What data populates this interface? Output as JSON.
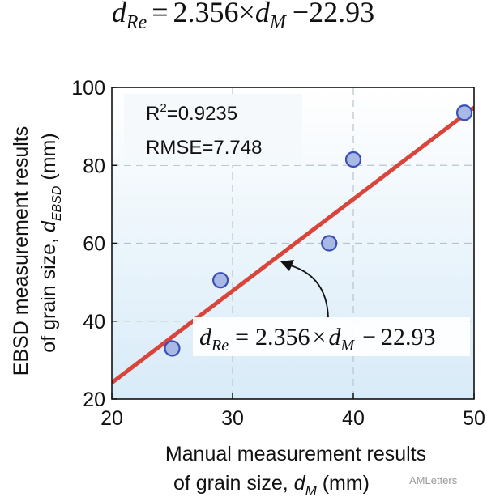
{
  "equation_header": {
    "lhs_var": "d",
    "lhs_sub": "Re",
    "equals": "=",
    "coef": "2.356",
    "times": "×",
    "rhs_var": "d",
    "rhs_sub": "M",
    "minus": "−",
    "intercept": "22.93"
  },
  "stats": {
    "r2_prefix": "R",
    "r2_sup": "2",
    "r2_value": "=0.9235",
    "rmse": "RMSE=7.748"
  },
  "colors": {
    "fit_line": "#d9453b",
    "marker_fill": "#a9b9e6",
    "marker_edge": "#3b4fb8",
    "bg_top": "#ffffff",
    "bg_bottom": "#d8ebf8"
  },
  "watermark": "AMLetters",
  "chart_data": {
    "type": "scatter",
    "xlabel_line1": "Manual measurement results",
    "xlabel_line2_prefix": "of grain size, ",
    "xlabel_var": "d",
    "xlabel_sub": "M",
    "xlabel_unit": " (mm)",
    "ylabel_line1": "EBSD measurement results",
    "ylabel_line2_prefix": "of grain size, ",
    "ylabel_var": "d",
    "ylabel_sub": "EBSD",
    "ylabel_unit": " (mm)",
    "xlim": [
      20,
      50
    ],
    "ylim": [
      20,
      100
    ],
    "xticks": [
      20,
      30,
      40,
      50
    ],
    "yticks": [
      20,
      40,
      60,
      80,
      100
    ],
    "grid": true,
    "points": [
      {
        "x": 25,
        "y": 33
      },
      {
        "x": 29,
        "y": 50.5
      },
      {
        "x": 38,
        "y": 60
      },
      {
        "x": 40,
        "y": 81.5
      },
      {
        "x": 49.2,
        "y": 93.5
      }
    ],
    "fit": {
      "slope": 2.356,
      "intercept": -22.93
    }
  }
}
